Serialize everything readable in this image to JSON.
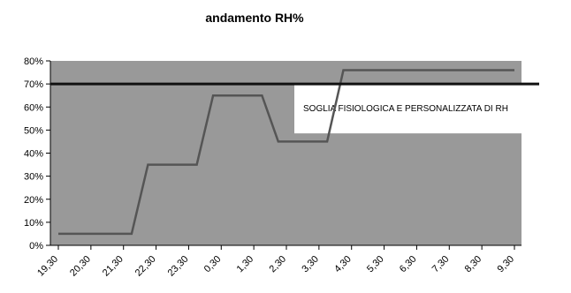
{
  "chart_data": {
    "type": "line",
    "title": "andamento RH%",
    "xlabel": "",
    "ylabel": "",
    "categories": [
      "19,30",
      "20,30",
      "21,30",
      "22,30",
      "23,30",
      "0,30",
      "1,30",
      "2,30",
      "3,30",
      "4,30",
      "5,30",
      "6,30",
      "7,30",
      "8,30",
      "9,30"
    ],
    "series": [
      {
        "values": [
          0.05,
          0.05,
          0.05,
          0.35,
          0.35,
          0.65,
          0.65,
          0.45,
          0.45,
          0.76,
          0.76,
          0.76,
          0.76,
          0.76,
          0.76
        ]
      }
    ],
    "threshold": {
      "label": "SOGLIA FISIOLOGICA E PERSONALIZZATA DI RH",
      "value": 0.7
    },
    "ylim": [
      0,
      0.8
    ],
    "yticks": [
      "0%",
      "10%",
      "20%",
      "30%",
      "40%",
      "50%",
      "60%",
      "70%",
      "80%"
    ],
    "grid": false,
    "legend": "none",
    "colors": {
      "plot_background": "#999999",
      "series_line": "#555555",
      "threshold_line": "#111111",
      "annotation_background": "#ffffff",
      "text": "#000000"
    }
  }
}
